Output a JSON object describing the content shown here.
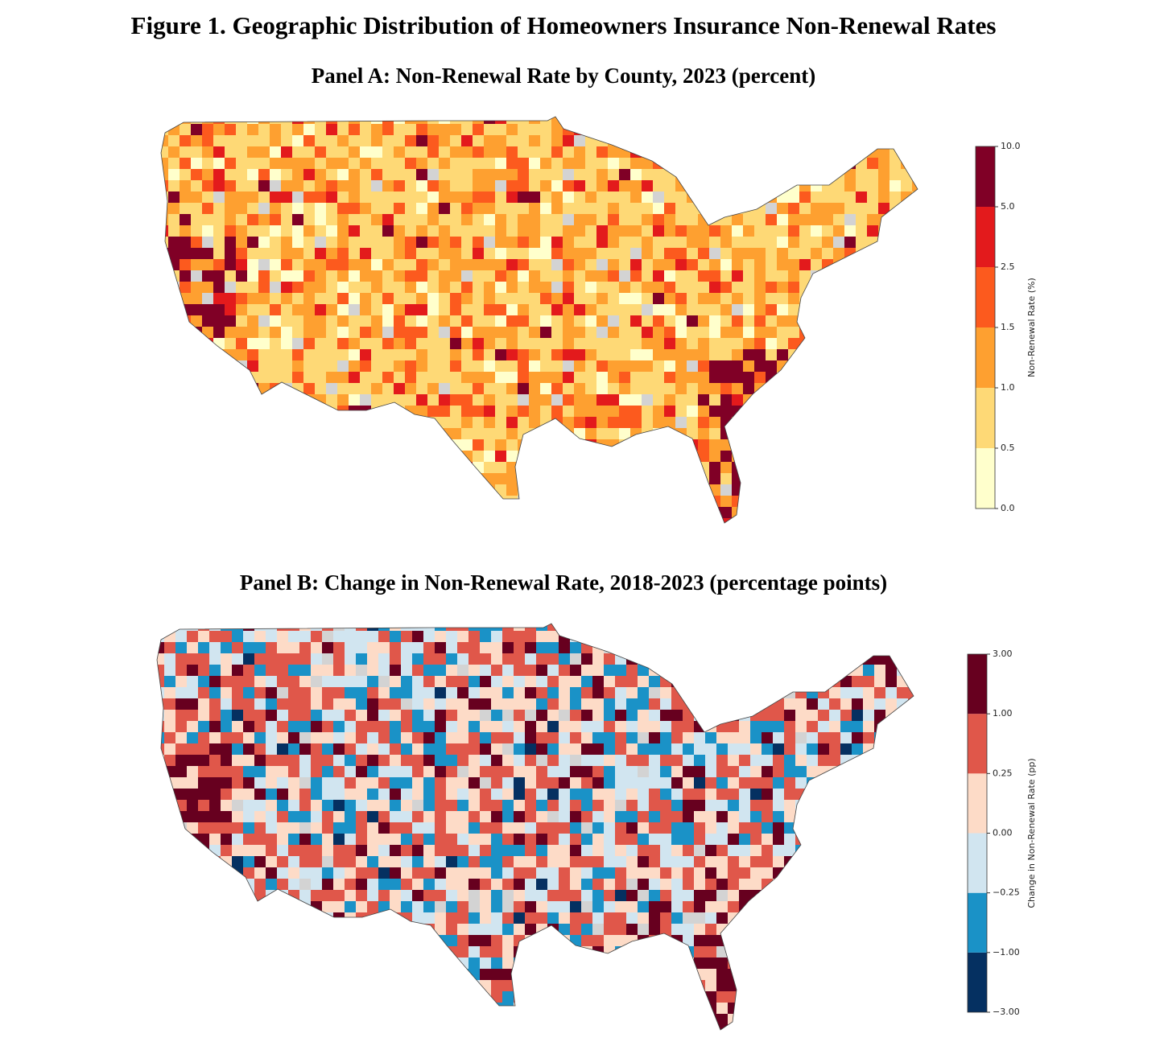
{
  "title": "Figure 1. Geographic Distribution of Homeowners Insurance Non-Renewal Rates",
  "panels": [
    {
      "title": "Panel A: Non-Renewal Rate by County, 2023 (percent)",
      "colorbar": {
        "label": "Non-Renewal Rate (%)",
        "ticks": [
          {
            "value": 0,
            "label": "0.0"
          },
          {
            "value": 0.5,
            "label": "0.5"
          },
          {
            "value": 1,
            "label": "1.0"
          },
          {
            "value": 1.5,
            "label": "1.5"
          },
          {
            "value": 2.5,
            "label": "2.5"
          },
          {
            "value": 5,
            "label": "5.0"
          },
          {
            "value": 10,
            "label": "10.0"
          }
        ],
        "colors": [
          "#ffffcc",
          "#fed976",
          "#fea030",
          "#fc5a1e",
          "#e31a1c",
          "#800026"
        ]
      }
    },
    {
      "title": "Panel B: Change in Non-Renewal Rate, 2018-2023 (percentage points)",
      "colorbar": {
        "label": "Change in Non-Renewal Rate (pp)",
        "ticks": [
          {
            "value": -3,
            "label": "−3.00"
          },
          {
            "value": -1,
            "label": "−1.00"
          },
          {
            "value": -0.25,
            "label": "−0.25"
          },
          {
            "value": 0,
            "label": "0.00"
          },
          {
            "value": 0.25,
            "label": "0.25"
          },
          {
            "value": 1,
            "label": "1.00"
          },
          {
            "value": 3,
            "label": "3.00"
          }
        ],
        "colors": [
          "#053061",
          "#1a92c7",
          "#d1e5f0",
          "#fddbc7",
          "#e0574a",
          "#67001f"
        ]
      }
    }
  ]
}
